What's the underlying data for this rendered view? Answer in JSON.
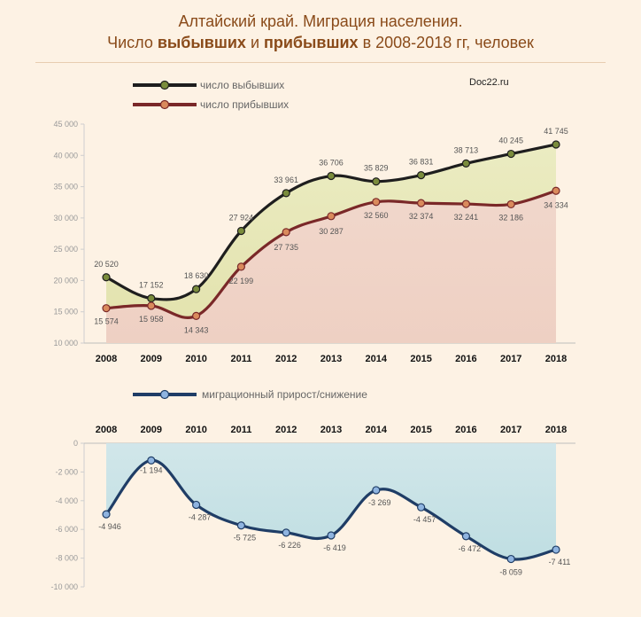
{
  "title": {
    "line1": "Алтайский край. Миграция населения.",
    "line2_part1": "Число ",
    "line2_bold1": "выбывших",
    "line2_part2": " и ",
    "line2_bold2": "прибывших",
    "line2_part3": " в 2008-2018 гг, человек"
  },
  "source": "Doc22.ru",
  "colors": {
    "departed": "#1e1e1e",
    "arrived": "#7a2828",
    "departed_marker": "#7a8c3c",
    "arrived_marker": "#d98a5c",
    "net": "#1f3d66",
    "net_marker": "#8fb4e0",
    "fill_top": "#e9ebbe",
    "fill_bottom": "#f1d6cc",
    "net_fill": "#cfe6ea"
  },
  "chart_data": [
    {
      "type": "line",
      "categories": [
        "2008",
        "2009",
        "2010",
        "2011",
        "2012",
        "2013",
        "2014",
        "2015",
        "2016",
        "2017",
        "2018"
      ],
      "series": [
        {
          "name": "число выбывших",
          "values": [
            20520,
            17152,
            18630,
            27924,
            33961,
            36706,
            35829,
            36831,
            38713,
            40245,
            41745
          ],
          "labels": [
            "20 520",
            "17 152",
            "18 630",
            "27 924",
            "33 961",
            "36 706",
            "35 829",
            "36 831",
            "38 713",
            "40 245",
            "41 745"
          ]
        },
        {
          "name": "число прибывших",
          "values": [
            15574,
            15958,
            14343,
            22199,
            27735,
            30287,
            32560,
            32374,
            32241,
            32186,
            34334
          ],
          "labels": [
            "15 574",
            "15 958",
            "14 343",
            "22 199",
            "27 735",
            "30 287",
            "32 560",
            "32 374",
            "32 241",
            "32 186",
            "34 334"
          ]
        }
      ],
      "ylim": [
        10000,
        45000
      ],
      "yticks": [
        10000,
        15000,
        20000,
        25000,
        30000,
        35000,
        40000,
        45000
      ],
      "ytick_labels": [
        "10 000",
        "15 000",
        "20 000",
        "25 000",
        "30 000",
        "35 000",
        "40 000",
        "45 000"
      ],
      "legend": "top-left"
    },
    {
      "type": "line",
      "categories": [
        "2008",
        "2009",
        "2010",
        "2011",
        "2012",
        "2013",
        "2014",
        "2015",
        "2016",
        "2017",
        "2018"
      ],
      "series": [
        {
          "name": "миграционный прирост/снижение",
          "values": [
            -4946,
            -1194,
            -4287,
            -5725,
            -6226,
            -6419,
            -3269,
            -4457,
            -6472,
            -8059,
            -7411
          ],
          "labels": [
            "-4 946",
            "-1 194",
            "-4 287",
            "-5 725",
            "-6 226",
            "-6 419",
            "-3 269",
            "-4 457",
            "-6 472",
            "-8 059",
            "-7 411"
          ]
        }
      ],
      "ylim": [
        -10000,
        0
      ],
      "yticks": [
        0,
        -2000,
        -4000,
        -6000,
        -8000,
        -10000
      ],
      "ytick_labels": [
        "0",
        "-2 000",
        "-4 000",
        "-6 000",
        "-8 000",
        "-10 000"
      ],
      "legend": "top-left"
    }
  ]
}
